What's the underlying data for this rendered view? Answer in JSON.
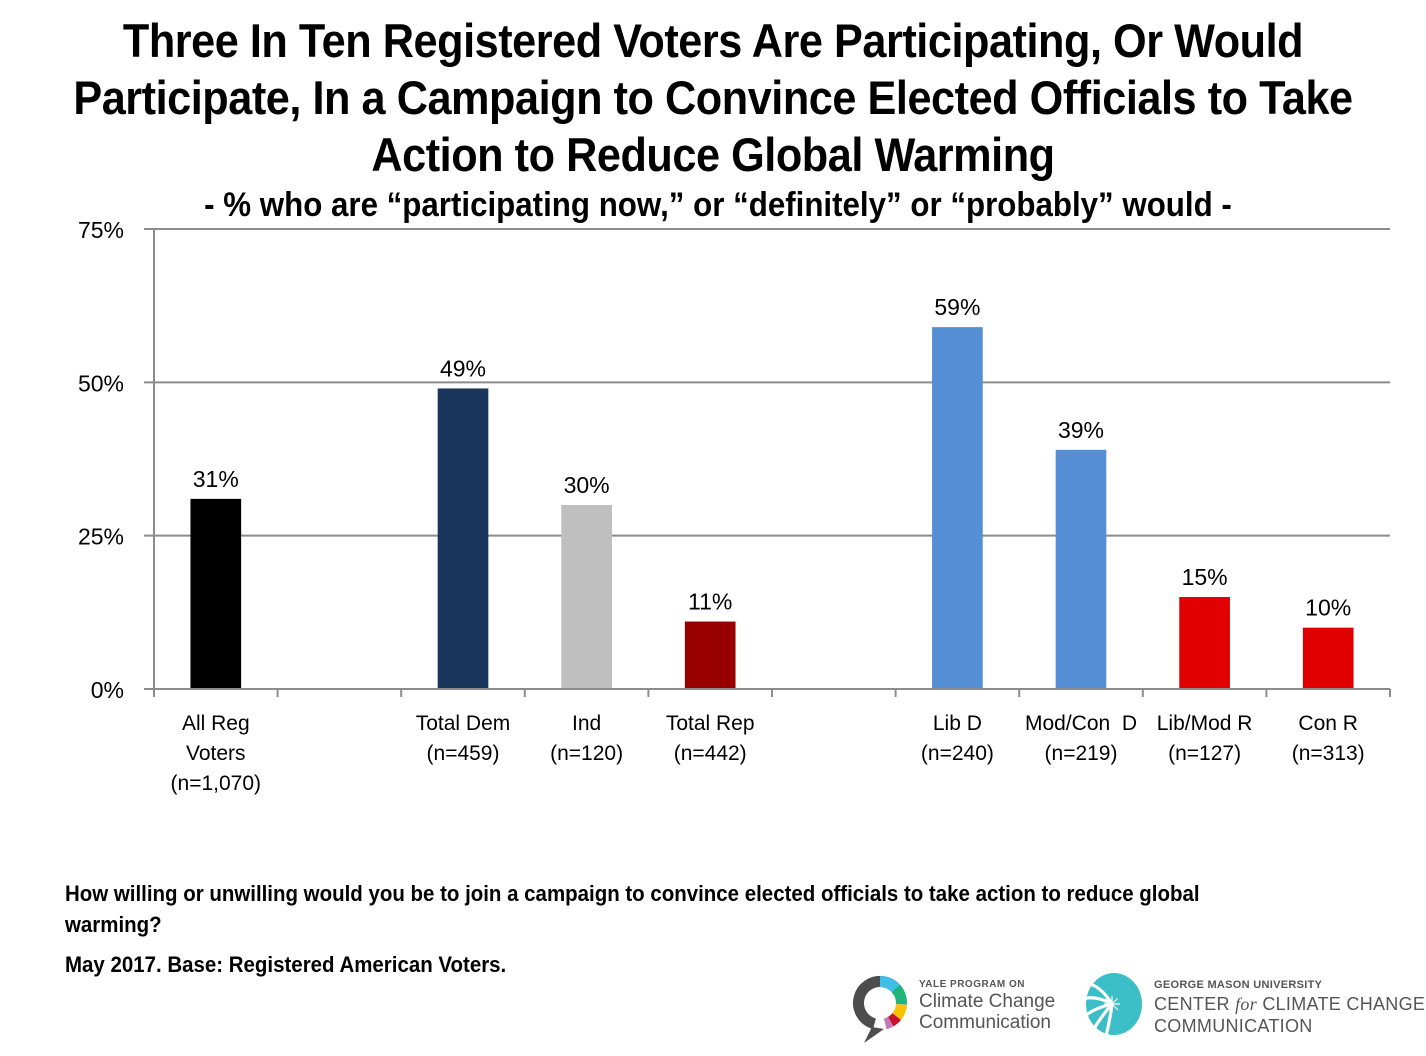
{
  "title": {
    "lines": [
      "Three In Ten Registered Voters Are Participating, Or Would",
      "Participate, In a Campaign to Convince Elected Officials to Take",
      "Action to Reduce Global Warming"
    ],
    "subtitle": "- % who are “participating now,” or “definitely” or “probably” would -"
  },
  "chart_data": {
    "type": "bar",
    "title": "Three In Ten Registered Voters Are Participating, Or Would Participate, In a Campaign to Convince Elected Officials to Take Action to Reduce Global Warming",
    "subtitle": "- % who are “participating now,” or “definitely” or “probably” would -",
    "xlabel": "",
    "ylabel": "",
    "ylim": [
      0,
      75
    ],
    "yticks": [
      0,
      25,
      50,
      75
    ],
    "ytick_labels": [
      "0%",
      "25%",
      "50%",
      "75%"
    ],
    "grid": true,
    "legend": "none",
    "slot_count": 10,
    "categories": [
      {
        "label": [
          "All Reg",
          "Voters",
          "(n=1,070)"
        ],
        "value": 31,
        "value_label": "31%",
        "color": "#000000",
        "slot": 0
      },
      {
        "label": [
          "Total Dem",
          "(n=459)"
        ],
        "value": 49,
        "value_label": "49%",
        "color": "#1b365d",
        "slot": 2
      },
      {
        "label": [
          "Ind",
          "(n=120)"
        ],
        "value": 30,
        "value_label": "30%",
        "color": "#bfbfbf",
        "slot": 3
      },
      {
        "label": [
          "Total Rep",
          "(n=442)"
        ],
        "value": 11,
        "value_label": "11%",
        "color": "#990000",
        "slot": 4
      },
      {
        "label": [
          "Lib D",
          "(n=240)"
        ],
        "value": 59,
        "value_label": "59%",
        "color": "#558ed5",
        "slot": 6
      },
      {
        "label": [
          "Mod/Con  D",
          "(n=219)"
        ],
        "value": 39,
        "value_label": "39%",
        "color": "#558ed5",
        "slot": 7
      },
      {
        "label": [
          "Lib/Mod R",
          "(n=127)"
        ],
        "value": 15,
        "value_label": "15%",
        "color": "#e00000",
        "slot": 8
      },
      {
        "label": [
          "Con R",
          "(n=313)"
        ],
        "value": 10,
        "value_label": "10%",
        "color": "#e00000",
        "slot": 9
      }
    ]
  },
  "footer": {
    "question": "How willing or unwilling would you be to join a campaign to convince elected officials to take action to reduce global warming?",
    "base": "May 2017. Base: Registered  American Voters."
  },
  "logos": {
    "yale": {
      "small": "YALE PROGRAM ON",
      "line1": "Climate Change",
      "line2": "Communication"
    },
    "gmu": {
      "small": "GEORGE MASON UNIVERSITY",
      "line1_pre": "CENTER ",
      "line1_for": "for",
      "line1_post": " CLIMATE CHANGE",
      "line2": "COMMUNICATION"
    }
  },
  "colors": {
    "gridline": "#8c8c8c",
    "text": "#000000",
    "logo_teal": "#3bbec8",
    "logo_gray": "#4d4d4d"
  }
}
